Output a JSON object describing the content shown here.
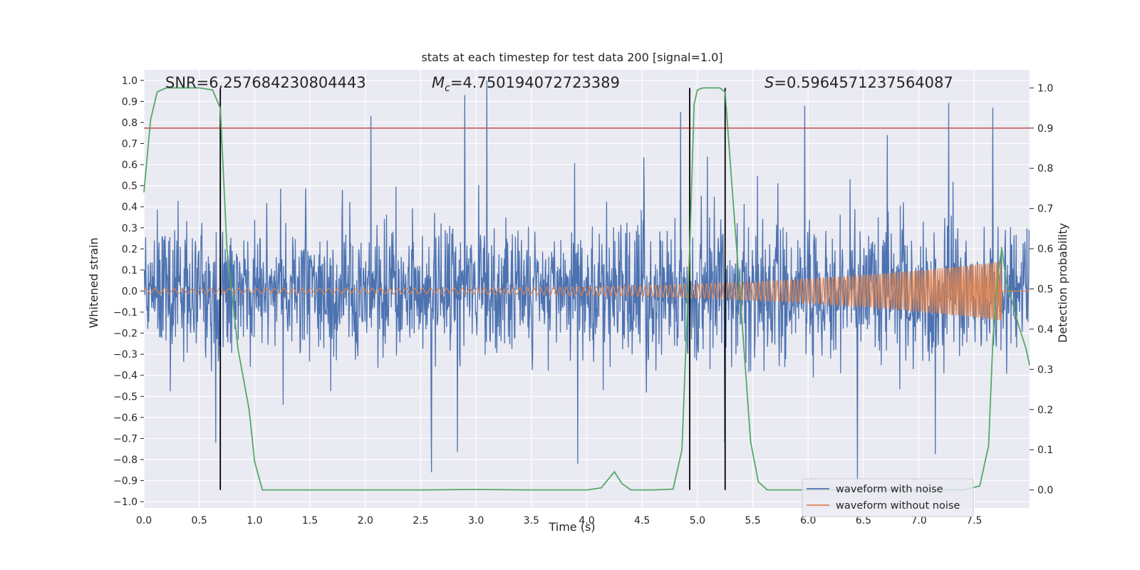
{
  "chart_data": {
    "type": "line",
    "title": "stats at each timestep for test data 200 [signal=1.0]",
    "xlabel": "Time (s)",
    "ylabel": "Whitened strain",
    "y2label": "Detection probability",
    "xlim": [
      0.0,
      8.0
    ],
    "ylim": [
      -1.03,
      1.05
    ],
    "y2lim": [
      -0.045,
      1.045
    ],
    "xticks": [
      0.0,
      0.5,
      1.0,
      1.5,
      2.0,
      2.5,
      3.0,
      3.5,
      4.0,
      4.5,
      5.0,
      5.5,
      6.0,
      6.5,
      7.0,
      7.5
    ],
    "xtick_labels": [
      "0.0",
      "0.5",
      "1.0",
      "1.5",
      "2.0",
      "2.5",
      "3.0",
      "3.5",
      "4.0",
      "4.5",
      "5.0",
      "5.5",
      "6.0",
      "6.5",
      "7.0",
      "7.5"
    ],
    "yticks": [
      1.0,
      0.9,
      0.8,
      0.7,
      0.6,
      0.5,
      0.4,
      0.3,
      0.2,
      0.1,
      0.0,
      -0.1,
      -0.2,
      -0.3,
      -0.4,
      -0.5,
      -0.6,
      -0.7,
      -0.8,
      -0.9,
      -1.0
    ],
    "ytick_labels": [
      "1.0",
      "0.9",
      "0.8",
      "0.7",
      "0.6",
      "0.5",
      "0.4",
      "0.3",
      "0.2",
      "0.1",
      "0.0",
      "−0.1",
      "−0.2",
      "−0.3",
      "−0.4",
      "−0.5",
      "−0.6",
      "−0.7",
      "−0.8",
      "−0.9",
      "−1.0"
    ],
    "y2ticks": [
      1.0,
      0.9,
      0.8,
      0.7,
      0.6,
      0.5,
      0.4,
      0.3,
      0.2,
      0.1,
      0.0
    ],
    "y2tick_labels": [
      "1.0",
      "0.9",
      "0.8",
      "0.7",
      "0.6",
      "0.5",
      "0.4",
      "0.3",
      "0.2",
      "0.1",
      "0.0"
    ],
    "grid": true,
    "annotations": {
      "snr": "SNR=6.257684230804443",
      "mc_symbol": "M",
      "mc_sub": "c",
      "mc_value": "=4.750194072723389",
      "s_symbol": "S",
      "s_value": "=0.5964571237564087"
    },
    "threshold": {
      "axis": "y2",
      "value": 0.9,
      "color": "#c44e52"
    },
    "vlines": [
      0.69,
      4.93,
      5.25
    ],
    "vline_range_y2": [
      0.0,
      1.0
    ],
    "legend": {
      "placement": "lower-right",
      "entries": [
        {
          "label": "waveform with noise",
          "color": "#4c72b0"
        },
        {
          "label": "waveform without noise",
          "color": "#dd8452"
        }
      ]
    },
    "series": [
      {
        "name": "waveform with noise",
        "color": "#4c72b0",
        "kind": "noise",
        "sample_rate": 256,
        "duration_s": 8.0,
        "approx_peak_abs": 1.0,
        "notable_peaks": [
          {
            "t": 2.05,
            "v": 0.83
          },
          {
            "t": 2.9,
            "v": 0.93
          },
          {
            "t": 3.1,
            "v": 1.0
          },
          {
            "t": 4.85,
            "v": 0.85
          },
          {
            "t": 5.97,
            "v": 0.88
          },
          {
            "t": 7.67,
            "v": 0.87
          },
          {
            "t": 2.6,
            "v": -0.86
          },
          {
            "t": 3.92,
            "v": -0.82
          },
          {
            "t": 6.45,
            "v": -0.9
          },
          {
            "t": 0.65,
            "v": -0.72
          },
          {
            "t": 5.25,
            "v": -0.72
          }
        ]
      },
      {
        "name": "waveform without noise",
        "color": "#dd8452",
        "kind": "chirp",
        "f_start_hz": 12,
        "f_end_hz": 60,
        "amp_start": 0.012,
        "amp_end": 0.14,
        "merger_t": 7.75
      },
      {
        "name": "detection probability",
        "axis": "y2",
        "color": "#55a868",
        "x": [
          0.0,
          0.06,
          0.12,
          0.2,
          0.3,
          0.4,
          0.5,
          0.62,
          0.69,
          0.75,
          0.85,
          0.95,
          1.0,
          1.07,
          1.5,
          2.0,
          2.5,
          3.0,
          3.5,
          4.0,
          4.13,
          4.25,
          4.32,
          4.4,
          4.6,
          4.78,
          4.86,
          4.93,
          4.97,
          5.0,
          5.05,
          5.12,
          5.2,
          5.25,
          5.3,
          5.4,
          5.48,
          5.55,
          5.63,
          5.75,
          6.0,
          6.5,
          7.0,
          7.4,
          7.55,
          7.63,
          7.67,
          7.72,
          7.75,
          7.79,
          7.84,
          7.9,
          7.97,
          8.0
        ],
        "values": [
          0.74,
          0.92,
          0.99,
          1.0,
          1.0,
          1.0,
          1.0,
          0.995,
          0.95,
          0.6,
          0.35,
          0.2,
          0.07,
          0.0,
          0.0,
          0.0,
          0.0,
          0.001,
          0.0,
          0.0,
          0.005,
          0.045,
          0.015,
          0.0,
          0.0,
          0.002,
          0.1,
          0.6,
          0.96,
          0.995,
          1.0,
          1.0,
          1.0,
          0.99,
          0.8,
          0.43,
          0.12,
          0.02,
          0.0,
          0.0,
          0.0,
          0.0,
          0.0,
          0.0,
          0.01,
          0.11,
          0.38,
          0.55,
          0.6,
          0.52,
          0.47,
          0.41,
          0.35,
          0.31
        ]
      }
    ]
  }
}
